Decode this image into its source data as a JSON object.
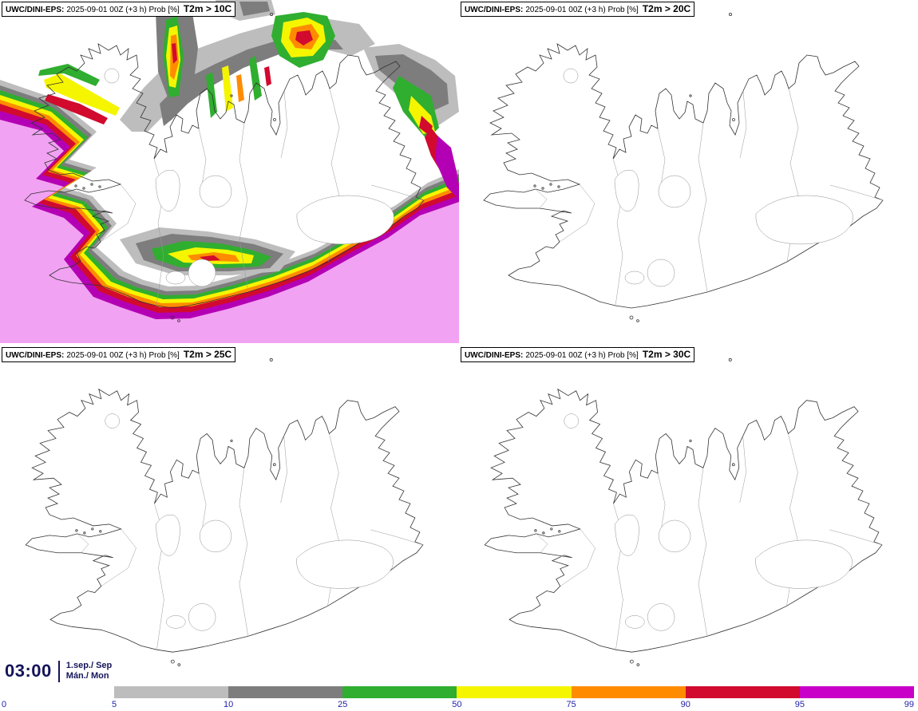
{
  "panels": [
    {
      "model": "UWC/DINI-EPS:",
      "meta": "2025-09-01 00Z (+3 h) Prob [%]",
      "param": "T2m > 10C"
    },
    {
      "model": "UWC/DINI-EPS:",
      "meta": "2025-09-01 00Z (+3 h) Prob [%]",
      "param": "T2m > 20C"
    },
    {
      "model": "UWC/DINI-EPS:",
      "meta": "2025-09-01 00Z (+3 h) Prob [%]",
      "param": "T2m > 25C"
    },
    {
      "model": "UWC/DINI-EPS:",
      "meta": "2025-09-01 00Z (+3 h) Prob [%]",
      "param": "T2m > 30C"
    }
  ],
  "footer": {
    "time": "03:00",
    "date": "1.sep./ Sep",
    "day": "Mán./ Mon"
  },
  "legend": {
    "ticks": [
      "0",
      "5",
      "10",
      "25",
      "50",
      "75",
      "90",
      "95",
      "99"
    ],
    "segments": [
      "#bdbdbd",
      "#7d7d7d",
      "#2fae2f",
      "#f5f500",
      "#ff8c00",
      "#d10a2e",
      "#c800c8"
    ],
    "tick_color": "#2222aa"
  },
  "overlay_colors": {
    "gray_light": "#bdbdbd",
    "gray_dark": "#7d7d7d",
    "green": "#2fae2f",
    "yellow": "#f5f500",
    "orange": "#ff8c00",
    "red": "#d10a2e",
    "magenta": "#b400b4",
    "pink_high": "#f2a2f2"
  }
}
